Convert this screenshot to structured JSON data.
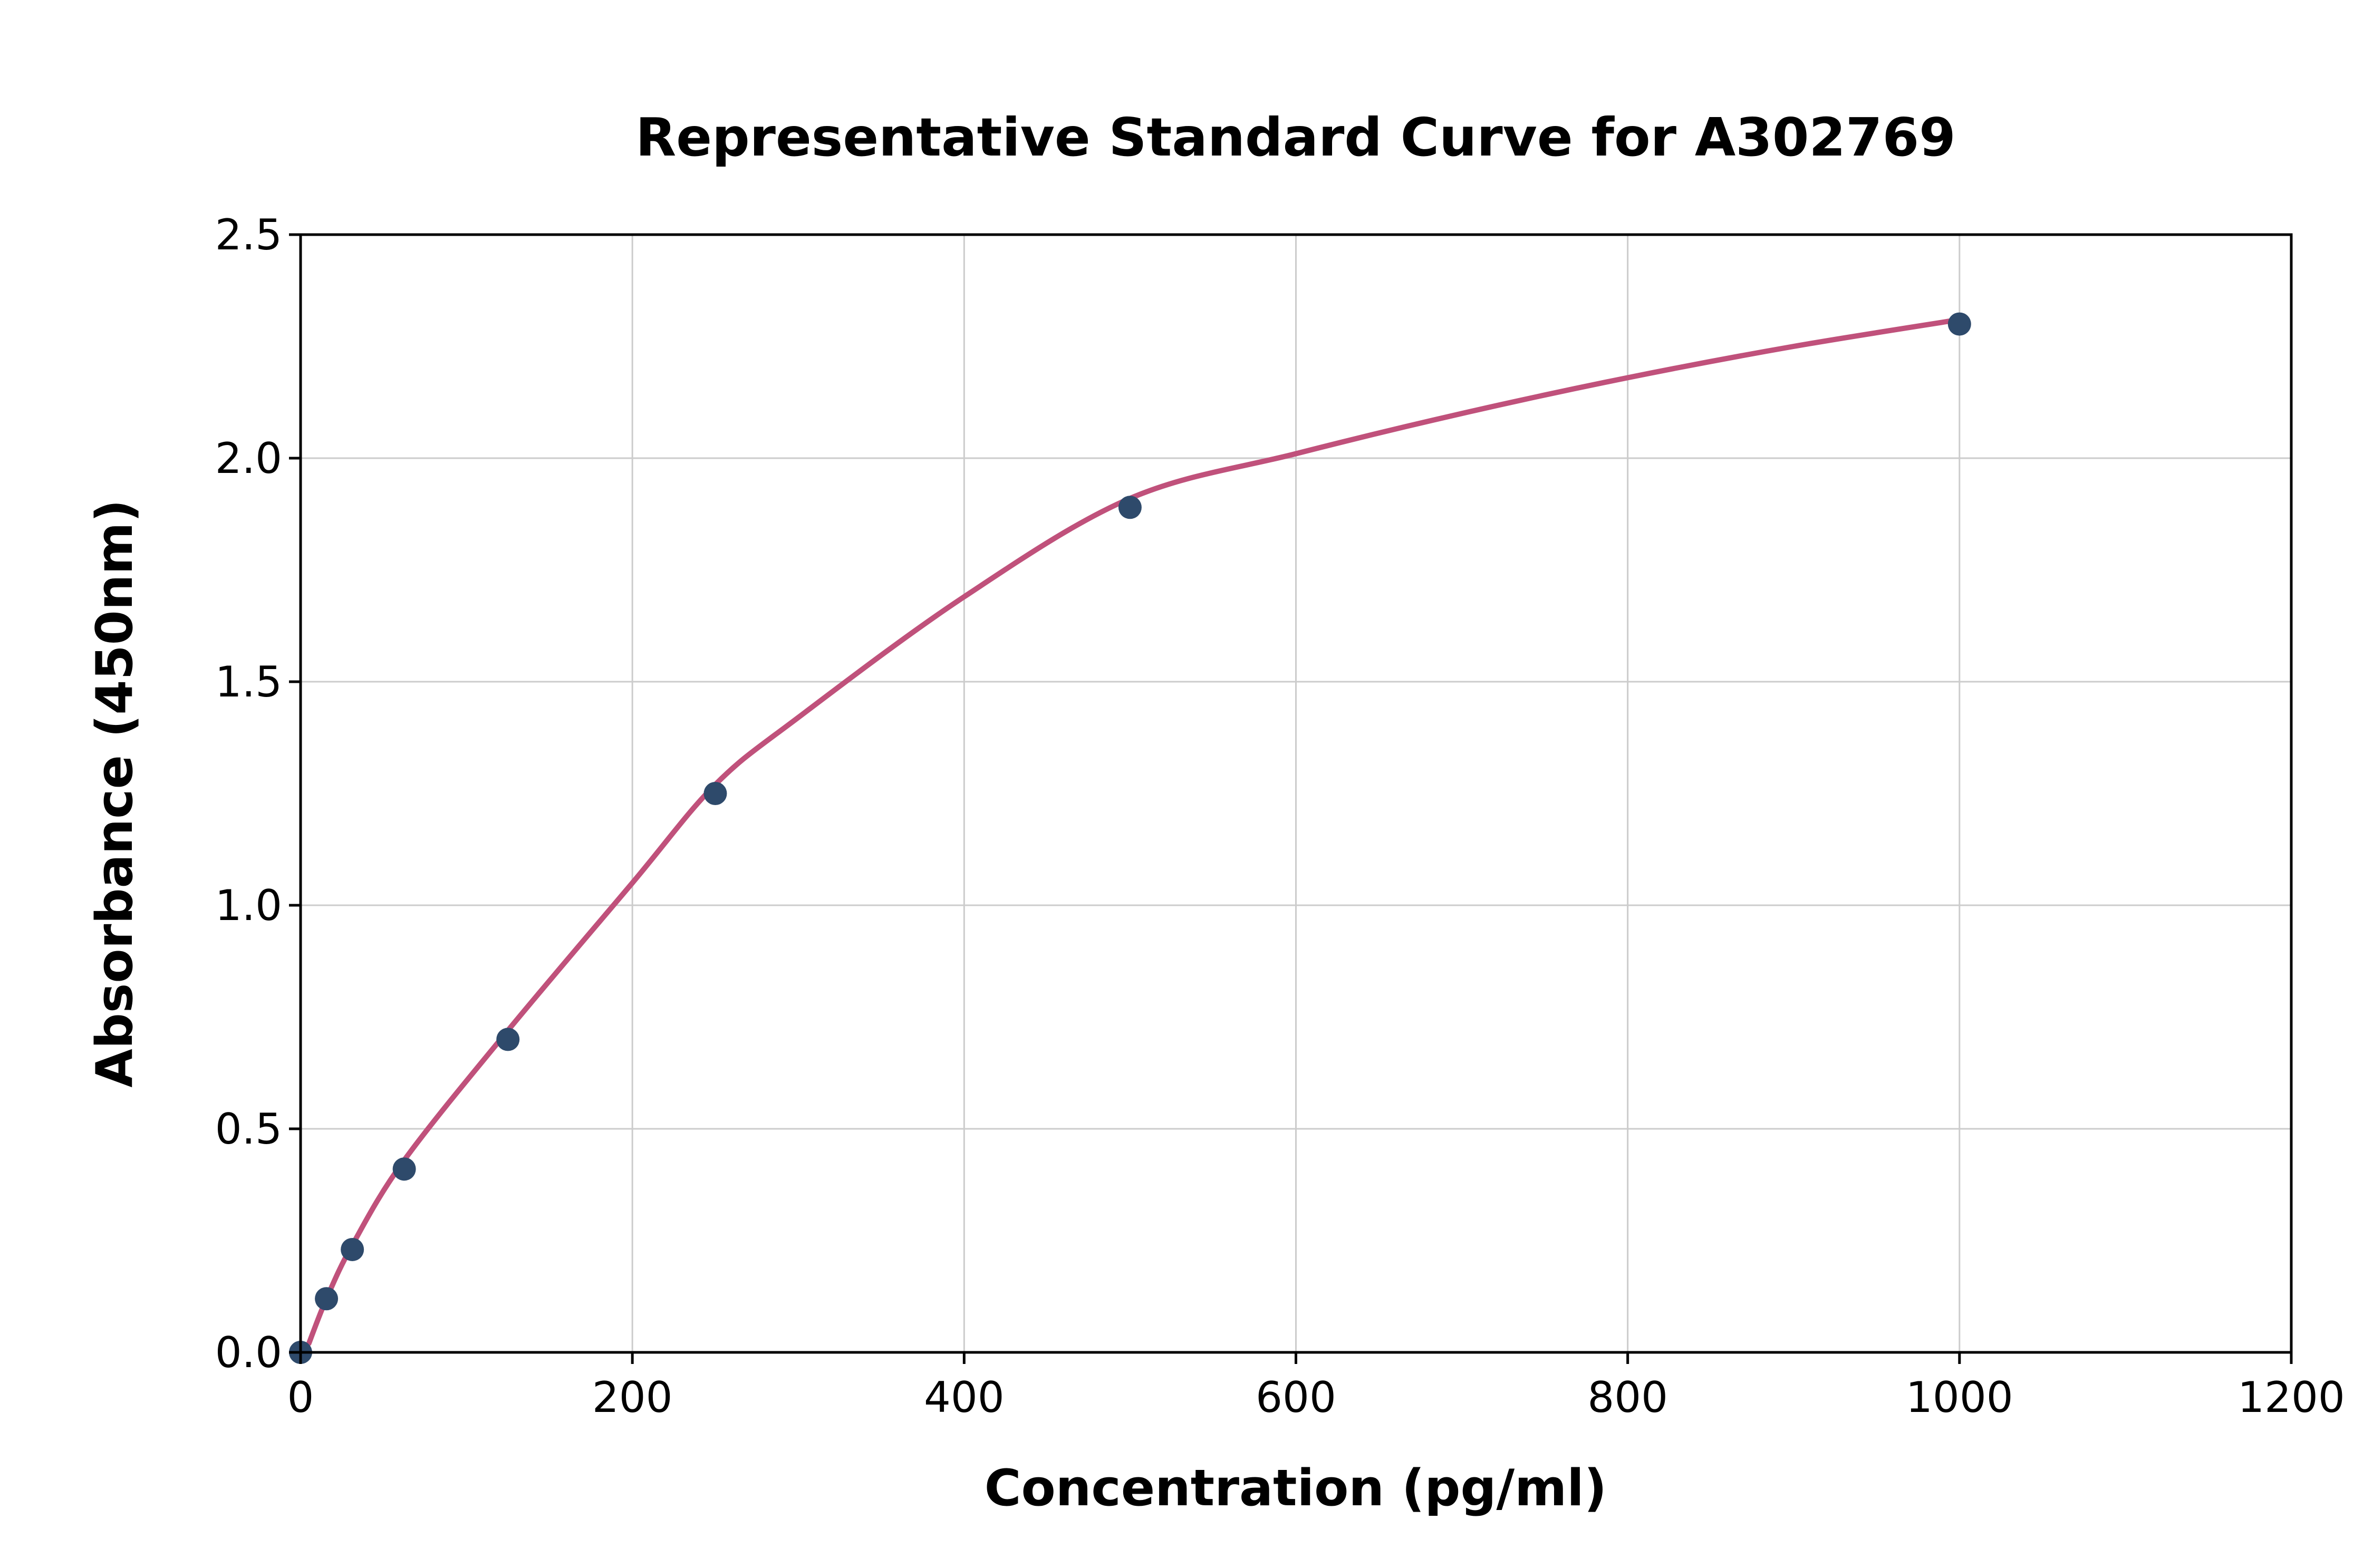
{
  "chart_data": {
    "type": "scatter",
    "title": "Representative Standard Curve for A302769",
    "xlabel": "Concentration (pg/ml)",
    "ylabel": "Absorbance (450nm)",
    "xlim": [
      0,
      1200
    ],
    "ylim": [
      0,
      2.5
    ],
    "grid": true,
    "legend": "none",
    "x_ticks": [
      0,
      200,
      400,
      600,
      800,
      1000,
      1200
    ],
    "x_tick_labels": [
      "0",
      "200",
      "400",
      "600",
      "800",
      "1000",
      "1200"
    ],
    "y_ticks": [
      0.0,
      0.5,
      1.0,
      1.5,
      2.0,
      2.5
    ],
    "y_tick_labels": [
      "0.0",
      "0.5",
      "1.0",
      "1.5",
      "2.0",
      "2.5"
    ],
    "series": [
      {
        "name": "fit-curve",
        "type": "line",
        "color": "#c0517b",
        "points": [
          [
            5,
            0.02
          ],
          [
            15.6,
            0.12
          ],
          [
            31.2,
            0.24
          ],
          [
            62.5,
            0.43
          ],
          [
            125,
            0.72
          ],
          [
            200,
            1.05
          ],
          [
            250,
            1.27
          ],
          [
            300,
            1.42
          ],
          [
            400,
            1.69
          ],
          [
            500,
            1.91
          ],
          [
            600,
            2.01
          ],
          [
            700,
            2.1
          ],
          [
            800,
            2.18
          ],
          [
            900,
            2.25
          ],
          [
            1000,
            2.31
          ]
        ]
      },
      {
        "name": "standard-points",
        "type": "scatter",
        "color": "#2e4a6b",
        "points": [
          [
            0,
            0.0
          ],
          [
            15.6,
            0.12
          ],
          [
            31.2,
            0.23
          ],
          [
            62.5,
            0.41
          ],
          [
            125,
            0.7
          ],
          [
            250,
            1.25
          ],
          [
            500,
            1.89
          ],
          [
            1000,
            2.3
          ]
        ]
      }
    ]
  }
}
